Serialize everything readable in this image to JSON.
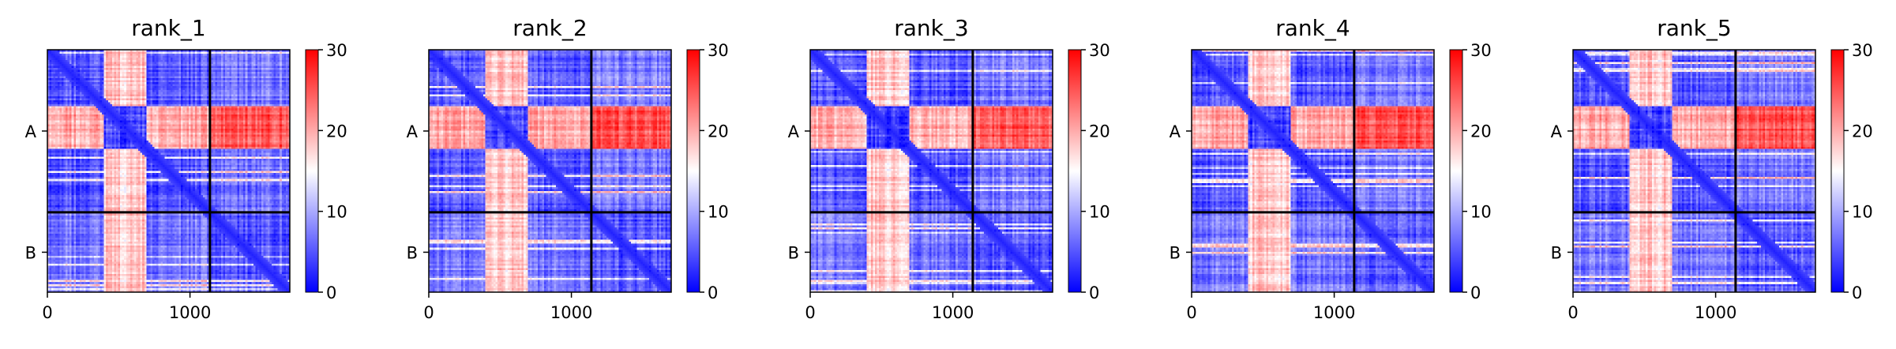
{
  "chart_data": [
    {
      "type": "heatmap",
      "title": "rank_1",
      "x_ticks": [
        0,
        1000
      ],
      "x_range": [
        0,
        1700
      ],
      "y_tick_labels": [
        "A",
        "B"
      ],
      "chain_boundary": 1140,
      "colorbar": {
        "min": 0,
        "max": 30,
        "ticks": [
          0,
          10,
          20,
          30
        ],
        "colors": [
          "#0000ff",
          "#ffffff",
          "#ff0000"
        ]
      }
    },
    {
      "type": "heatmap",
      "title": "rank_2",
      "x_ticks": [
        0,
        1000
      ],
      "x_range": [
        0,
        1700
      ],
      "y_tick_labels": [
        "A",
        "B"
      ],
      "chain_boundary": 1140,
      "colorbar": {
        "min": 0,
        "max": 30,
        "ticks": [
          0,
          10,
          20,
          30
        ],
        "colors": [
          "#0000ff",
          "#ffffff",
          "#ff0000"
        ]
      }
    },
    {
      "type": "heatmap",
      "title": "rank_3",
      "x_ticks": [
        0,
        1000
      ],
      "x_range": [
        0,
        1700
      ],
      "y_tick_labels": [
        "A",
        "B"
      ],
      "chain_boundary": 1140,
      "colorbar": {
        "min": 0,
        "max": 30,
        "ticks": [
          0,
          10,
          20,
          30
        ],
        "colors": [
          "#0000ff",
          "#ffffff",
          "#ff0000"
        ]
      }
    },
    {
      "type": "heatmap",
      "title": "rank_4",
      "x_ticks": [
        0,
        1000
      ],
      "x_range": [
        0,
        1700
      ],
      "y_tick_labels": [
        "A",
        "B"
      ],
      "chain_boundary": 1140,
      "colorbar": {
        "min": 0,
        "max": 30,
        "ticks": [
          0,
          10,
          20,
          30
        ],
        "colors": [
          "#0000ff",
          "#ffffff",
          "#ff0000"
        ]
      }
    },
    {
      "type": "heatmap",
      "title": "rank_5",
      "x_ticks": [
        0,
        1000
      ],
      "x_range": [
        0,
        1700
      ],
      "y_tick_labels": [
        "A",
        "B"
      ],
      "chain_boundary": 1140,
      "colorbar": {
        "min": 0,
        "max": 30,
        "ticks": [
          0,
          10,
          20,
          30
        ],
        "colors": [
          "#0000ff",
          "#ffffff",
          "#ff0000"
        ]
      }
    }
  ]
}
